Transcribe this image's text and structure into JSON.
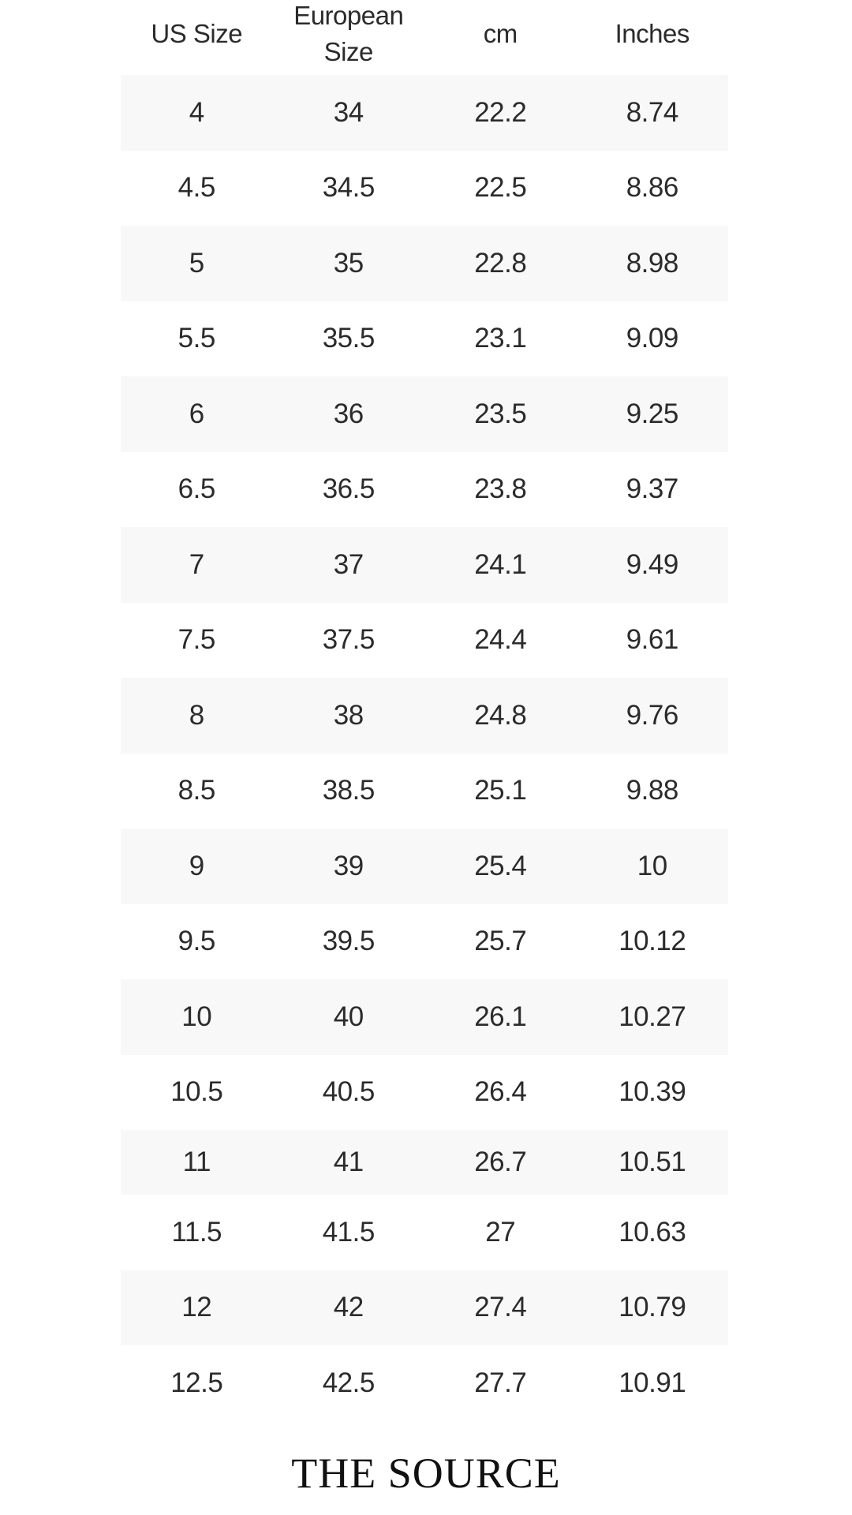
{
  "table": {
    "headers": [
      "US Size",
      "European Size",
      "cm",
      "Inches"
    ],
    "rows": [
      [
        "4",
        "34",
        "22.2",
        "8.74"
      ],
      [
        "4.5",
        "34.5",
        "22.5",
        "8.86"
      ],
      [
        "5",
        "35",
        "22.8",
        "8.98"
      ],
      [
        "5.5",
        "35.5",
        "23.1",
        "9.09"
      ],
      [
        "6",
        "36",
        "23.5",
        "9.25"
      ],
      [
        "6.5",
        "36.5",
        "23.8",
        "9.37"
      ],
      [
        "7",
        "37",
        "24.1",
        "9.49"
      ],
      [
        "7.5",
        "37.5",
        "24.4",
        "9.61"
      ],
      [
        "8",
        "38",
        "24.8",
        "9.76"
      ],
      [
        "8.5",
        "38.5",
        "25.1",
        "9.88"
      ],
      [
        "9",
        "39",
        "25.4",
        "10"
      ],
      [
        "9.5",
        "39.5",
        "25.7",
        "10.12"
      ],
      [
        "10",
        "40",
        "26.1",
        "10.27"
      ],
      [
        "10.5",
        "40.5",
        "26.4",
        "10.39"
      ],
      [
        "11",
        "41",
        "26.7",
        "10.51"
      ],
      [
        "11.5",
        "41.5",
        "27",
        "10.63"
      ],
      [
        "12",
        "42",
        "27.4",
        "10.79"
      ],
      [
        "12.5",
        "42.5",
        "27.7",
        "10.91"
      ]
    ],
    "stripe_color": "#f8f8f8"
  },
  "footer": {
    "brand": "THE SOURCE"
  }
}
